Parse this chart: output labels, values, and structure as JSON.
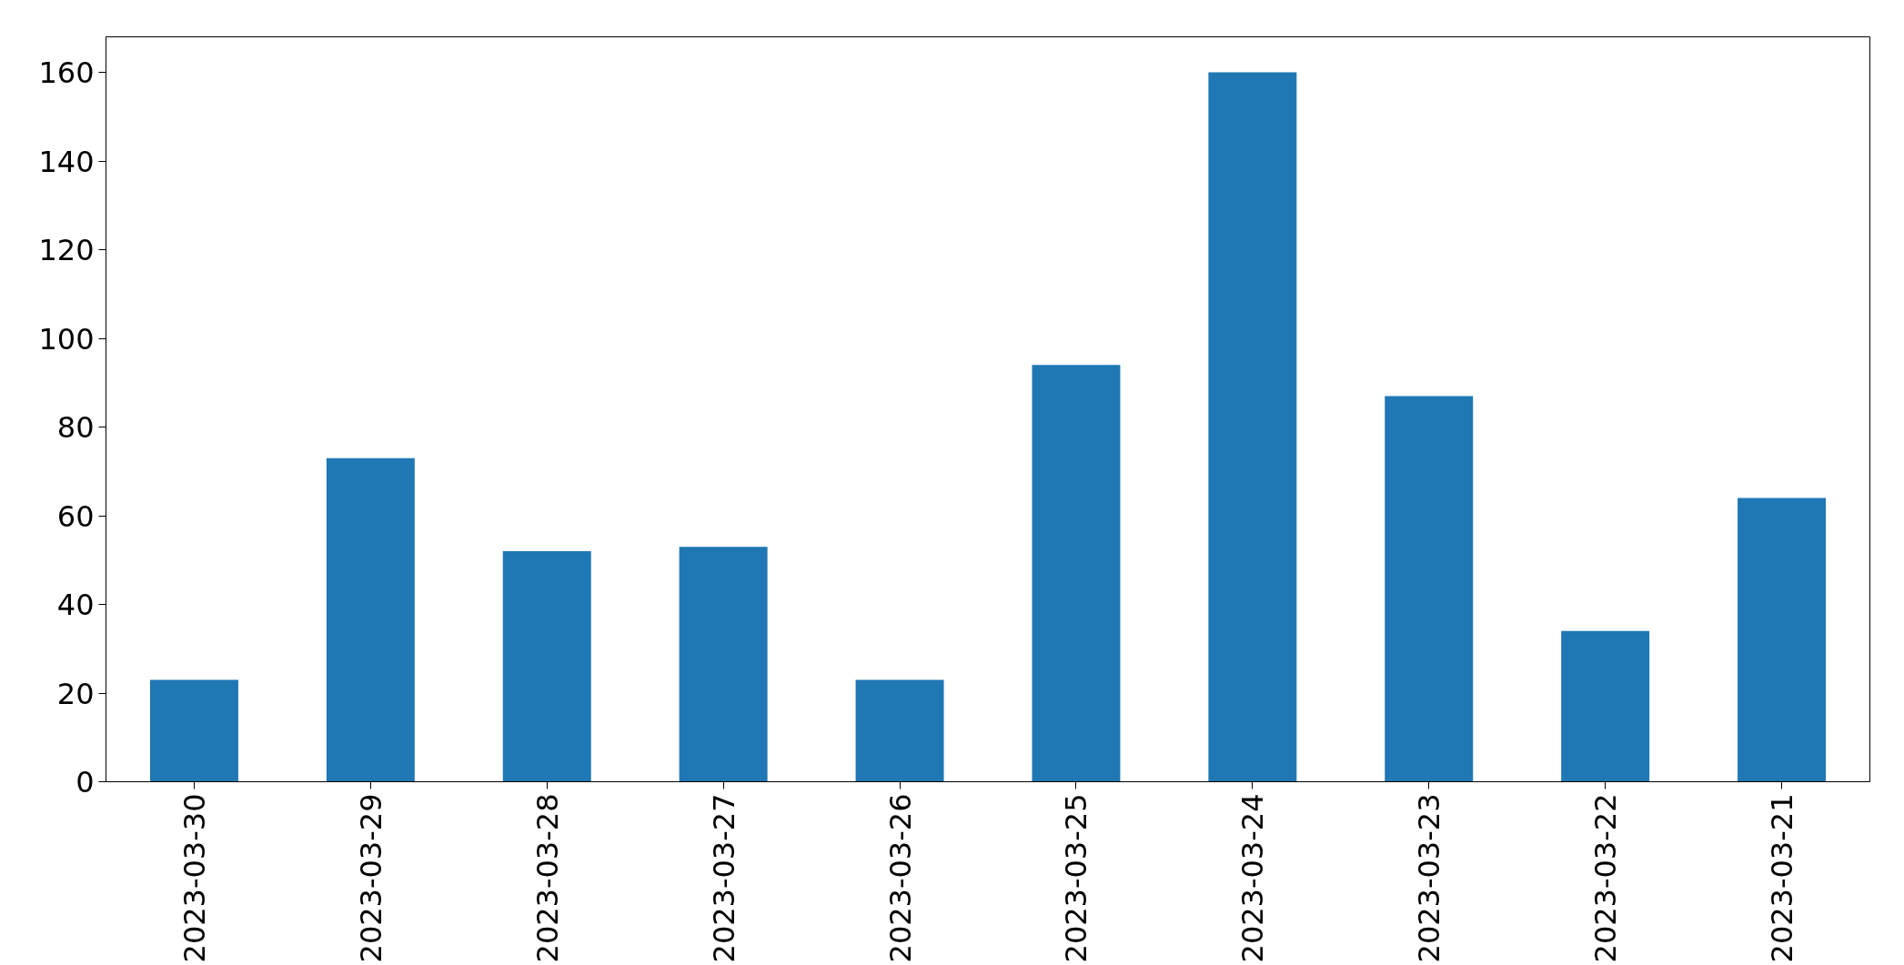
{
  "chart_data": {
    "type": "bar",
    "categories": [
      "2023-03-30",
      "2023-03-29",
      "2023-03-28",
      "2023-03-27",
      "2023-03-26",
      "2023-03-25",
      "2023-03-24",
      "2023-03-23",
      "2023-03-22",
      "2023-03-21"
    ],
    "values": [
      23,
      73,
      52,
      53,
      23,
      94,
      160,
      87,
      34,
      64
    ],
    "color": "#1f77b4",
    "ylim": [
      0,
      168
    ],
    "yticks": [
      0,
      20,
      40,
      60,
      80,
      100,
      120,
      140,
      160
    ],
    "grid": false
  }
}
